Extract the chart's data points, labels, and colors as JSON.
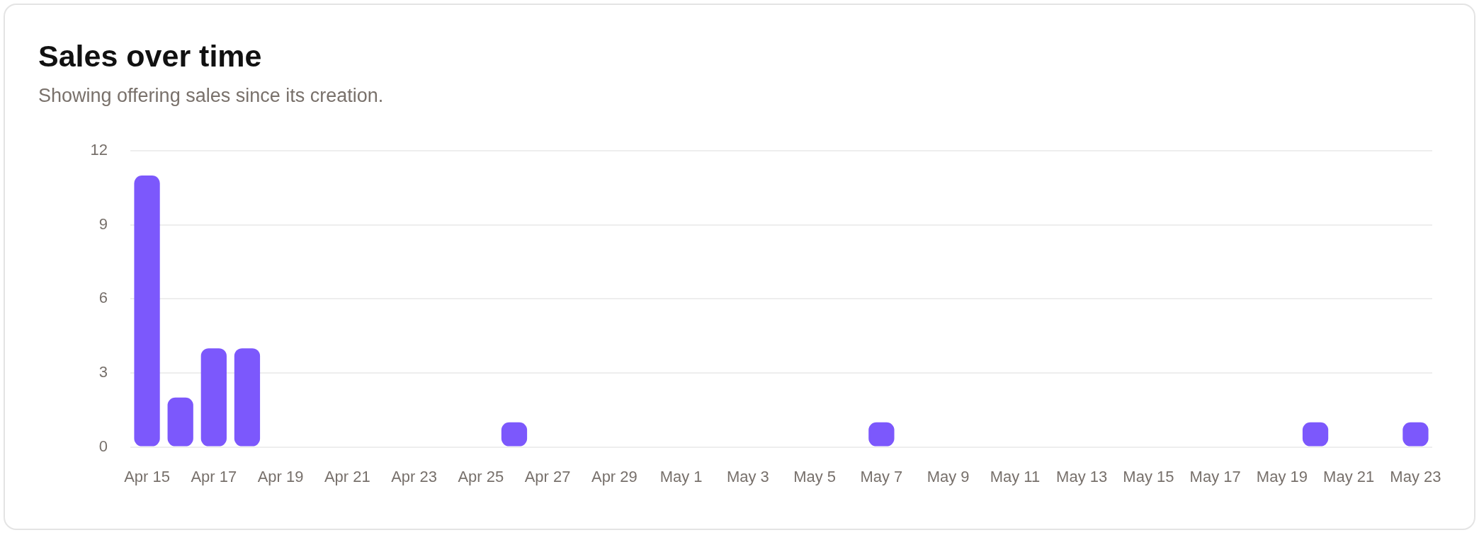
{
  "chart_data": {
    "type": "bar",
    "title": "Sales over time",
    "subtitle": "Showing offering sales since its creation.",
    "categories": [
      "Apr 15",
      null,
      "Apr 17",
      null,
      "Apr 19",
      null,
      "Apr 21",
      null,
      "Apr 23",
      null,
      "Apr 25",
      null,
      "Apr 27",
      null,
      "Apr 29",
      null,
      "May 1",
      null,
      "May 3",
      null,
      "May 5",
      null,
      "May 7",
      null,
      "May 9",
      null,
      "May 11",
      null,
      "May 13",
      null,
      "May 15",
      null,
      "May 17",
      null,
      "May 19",
      null,
      "May 21",
      null,
      "May 23"
    ],
    "values": [
      11,
      2,
      4,
      4,
      0,
      0,
      0,
      0,
      0,
      0,
      0,
      1,
      0,
      0,
      0,
      0,
      0,
      0,
      0,
      0,
      0,
      0,
      1,
      0,
      0,
      0,
      0,
      0,
      0,
      0,
      0,
      0,
      0,
      0,
      0,
      1,
      0,
      0,
      1
    ],
    "color": "#7c58fc",
    "ylim": [
      0,
      12
    ],
    "yticks": [
      0,
      3,
      6,
      9,
      12
    ],
    "grid": "y"
  }
}
